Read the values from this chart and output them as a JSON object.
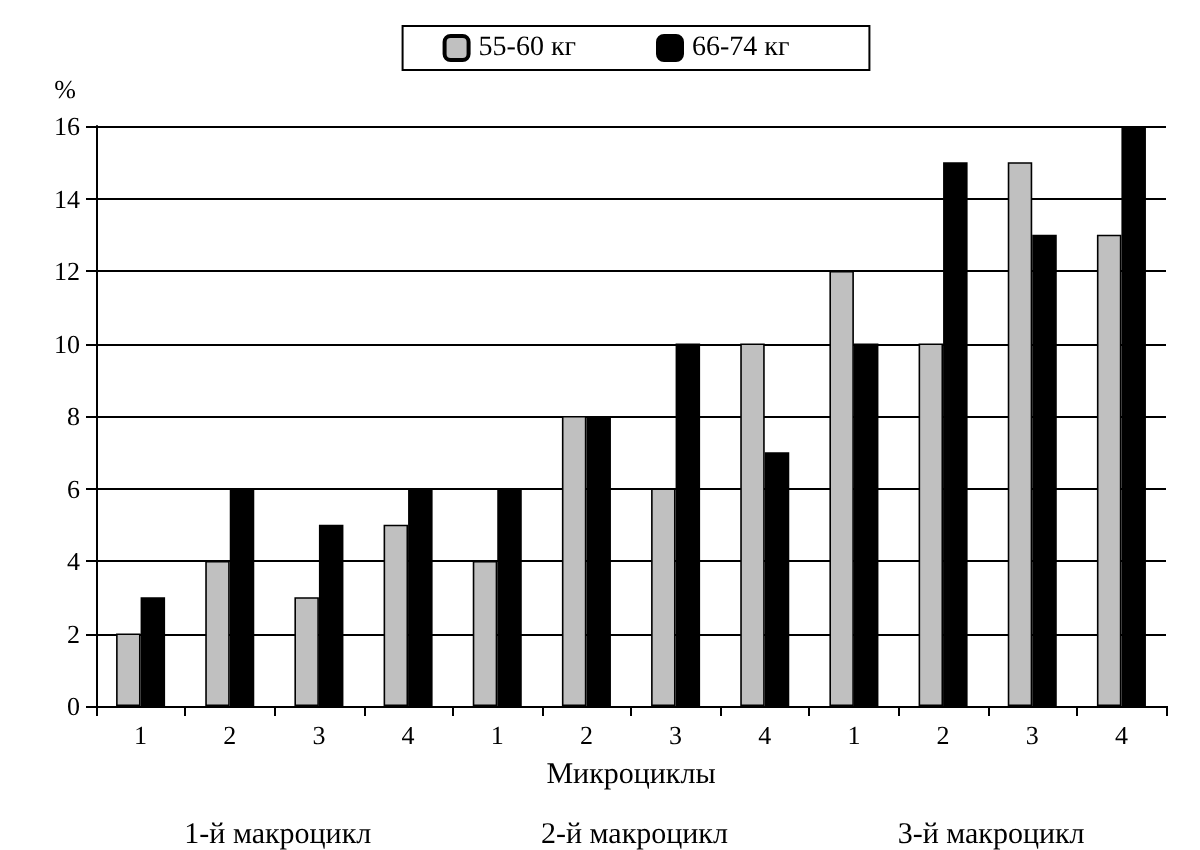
{
  "chart_data": {
    "type": "bar",
    "categories": [
      "1",
      "2",
      "3",
      "4",
      "1",
      "2",
      "3",
      "4",
      "1",
      "2",
      "3",
      "4"
    ],
    "series": [
      {
        "name": "55-60 кг",
        "color": "#c0c0c0",
        "values": [
          2,
          4,
          3,
          5,
          4,
          8,
          6,
          10,
          12,
          10,
          15,
          13
        ]
      },
      {
        "name": "66-74 кг",
        "color": "#000000",
        "values": [
          3,
          6,
          5,
          6,
          6,
          8,
          10,
          7,
          10,
          15,
          13,
          16
        ]
      }
    ],
    "xlabel": "Микроциклы",
    "ylabel": "%",
    "ylim": [
      0,
      16
    ],
    "yticks": [
      0,
      2,
      4,
      6,
      8,
      10,
      12,
      14,
      16
    ],
    "grid": "y",
    "legend": "top",
    "annotations": [
      "1-й макроцикл",
      "2-й макроцикл",
      "3-й макроцикл"
    ]
  }
}
